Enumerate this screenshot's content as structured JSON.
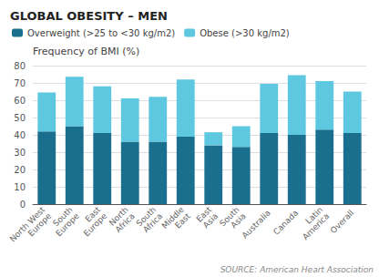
{
  "chart_data": {
    "type": "bar",
    "title": "GLOBAL OBESITY – MEN",
    "ylabel": "Frequency of BMI (%)",
    "categories": [
      "North West\nEurope",
      "South\nEurope",
      "East\nEurope",
      "North\nAfrica",
      "South\nAfrica",
      "Middle\nEast",
      "East\nAsia",
      "South\nAsia",
      "Australia",
      "Canada",
      "Latin\nAmerica",
      "Overall"
    ],
    "series": [
      {
        "name": "Overweight (>25 to <30 kg/m2)",
        "color": "#1a6e8e",
        "values": [
          42,
          45,
          41,
          36,
          36,
          39,
          34,
          33,
          41,
          40,
          43,
          41
        ]
      },
      {
        "name": "Obese (>30 kg/m2)",
        "color": "#5ec8e0",
        "values": [
          22.5,
          28.5,
          27,
          25,
          26,
          33,
          7.5,
          12,
          28.5,
          34.5,
          28,
          24
        ]
      }
    ],
    "stacked": true,
    "ylim": [
      0,
      80
    ],
    "yticks": [
      0,
      10,
      20,
      30,
      40,
      50,
      60,
      70,
      80
    ],
    "grid": true,
    "legend": "upper left",
    "annotations": [
      "SOURCE: American Heart Association"
    ]
  }
}
